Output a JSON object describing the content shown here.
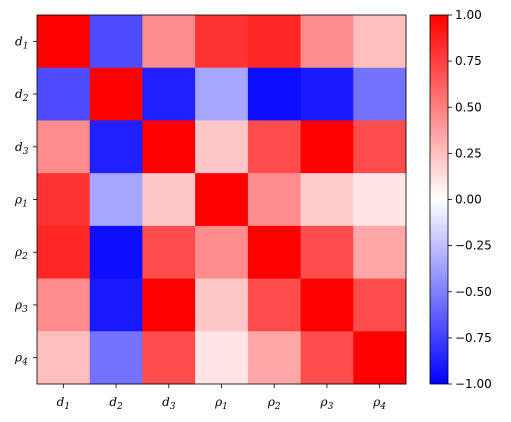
{
  "chart_data": {
    "type": "heatmap",
    "title": "",
    "xlabel": "",
    "ylabel": "",
    "x_categories": [
      {
        "base": "d",
        "sub": "1"
      },
      {
        "base": "d",
        "sub": "2"
      },
      {
        "base": "d",
        "sub": "3"
      },
      {
        "base": "ρ",
        "sub": "1"
      },
      {
        "base": "ρ",
        "sub": "2"
      },
      {
        "base": "ρ",
        "sub": "3"
      },
      {
        "base": "ρ",
        "sub": "4"
      }
    ],
    "y_categories": [
      {
        "base": "d",
        "sub": "1"
      },
      {
        "base": "d",
        "sub": "2"
      },
      {
        "base": "d",
        "sub": "3"
      },
      {
        "base": "ρ",
        "sub": "1"
      },
      {
        "base": "ρ",
        "sub": "2"
      },
      {
        "base": "ρ",
        "sub": "3"
      },
      {
        "base": "ρ",
        "sub": "4"
      }
    ],
    "values": [
      [
        1.0,
        -0.7,
        0.45,
        0.8,
        0.85,
        0.45,
        0.25
      ],
      [
        -0.7,
        1.0,
        -0.88,
        -0.35,
        -0.95,
        -0.9,
        -0.55
      ],
      [
        0.45,
        -0.88,
        1.0,
        0.22,
        0.7,
        1.0,
        0.7
      ],
      [
        0.8,
        -0.35,
        0.22,
        1.0,
        0.45,
        0.2,
        0.1
      ],
      [
        0.85,
        -0.95,
        0.7,
        0.45,
        1.0,
        0.7,
        0.35
      ],
      [
        0.45,
        -0.9,
        1.0,
        0.22,
        0.7,
        1.0,
        0.7
      ],
      [
        0.25,
        -0.55,
        0.7,
        0.1,
        0.35,
        0.7,
        1.0
      ]
    ],
    "colormap": "bwr",
    "vmin": -1.0,
    "vmax": 1.0,
    "colorbar": {
      "ticks": [
        1.0,
        0.75,
        0.5,
        0.25,
        0.0,
        -0.25,
        -0.5,
        -0.75,
        -1.0
      ],
      "tick_labels": [
        "1.00",
        "0.75",
        "0.50",
        "0.25",
        "0.00",
        "−0.25",
        "−0.50",
        "−0.75",
        "−1.00"
      ]
    },
    "colors": {
      "low": "#0000ff",
      "mid": "#ffffff",
      "high": "#ff0000"
    }
  }
}
